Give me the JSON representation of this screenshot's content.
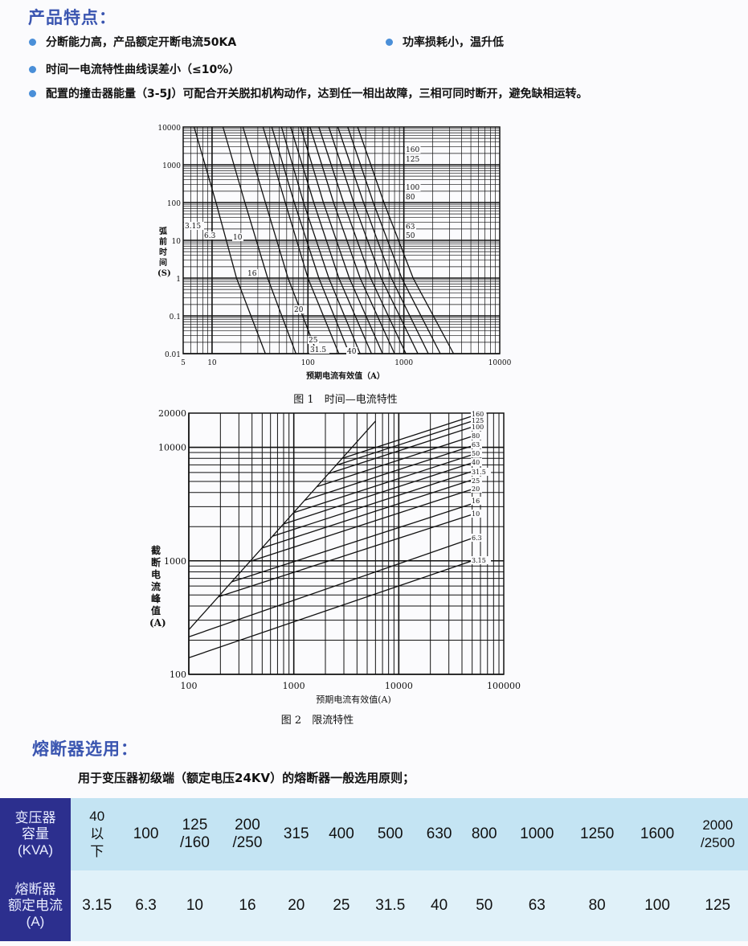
{
  "features": {
    "title": "产品特点：",
    "items": [
      "分断能力高，产品额定开断电流50KA",
      "功率损耗小，温升低",
      "时间一电流特性曲线误差小（≤10%）",
      "配置的撞击器能量（3-5J）可配合开关脱扣机构动作，达到任一相出故障，三相可同时断开，避免缺相运转。"
    ]
  },
  "chart_data": [
    {
      "type": "line",
      "caption": "图 1　时间—电流特性",
      "xlabel": "预期电流有效值（A）",
      "ylabel": "弧前时间(S)",
      "xscale": "log",
      "yscale": "log",
      "xlim": [
        5,
        10000
      ],
      "ylim": [
        0.01,
        10000
      ],
      "xticks": [
        "5",
        "10",
        "100",
        "1000",
        "10000"
      ],
      "xtick_values": [
        5,
        10,
        100,
        1000,
        10000
      ],
      "yticks": [
        "10000",
        "1000",
        "100",
        "10",
        "1",
        "0.1",
        "0.01"
      ],
      "ytick_values": [
        10000,
        1000,
        100,
        10,
        1,
        0.1,
        0.01
      ],
      "grid": true,
      "series": [
        {
          "name": "3.15",
          "points": [
            [
              6.5,
              10000
            ],
            [
              11,
              100
            ],
            [
              18,
              1
            ],
            [
              36,
              0.01
            ]
          ]
        },
        {
          "name": "6.3",
          "points": [
            [
              13,
              10000
            ],
            [
              22,
              100
            ],
            [
              38,
              1
            ],
            [
              75,
              0.01
            ]
          ]
        },
        {
          "name": "10",
          "points": [
            [
              21,
              10000
            ],
            [
              36,
              100
            ],
            [
              62,
              1
            ],
            [
              125,
              0.01
            ]
          ]
        },
        {
          "name": "16",
          "points": [
            [
              34,
              10000
            ],
            [
              58,
              100
            ],
            [
              100,
              1
            ],
            [
              210,
              0.01
            ]
          ]
        },
        {
          "name": "20",
          "points": [
            [
              42,
              10000
            ],
            [
              72,
              100
            ],
            [
              130,
              1
            ],
            [
              270,
              0.01
            ]
          ]
        },
        {
          "name": "25",
          "points": [
            [
              53,
              10000
            ],
            [
              90,
              100
            ],
            [
              165,
              1
            ],
            [
              350,
              0.01
            ]
          ]
        },
        {
          "name": "31.5",
          "points": [
            [
              66,
              10000
            ],
            [
              115,
              100
            ],
            [
              210,
              1
            ],
            [
              460,
              0.01
            ]
          ]
        },
        {
          "name": "40",
          "points": [
            [
              84,
              10000
            ],
            [
              145,
              100
            ],
            [
              270,
              1
            ],
            [
              600,
              0.01
            ]
          ]
        },
        {
          "name": "50",
          "points": [
            [
              105,
              10000
            ],
            [
              185,
              100
            ],
            [
              350,
              1
            ],
            [
              800,
              0.01
            ]
          ]
        },
        {
          "name": "63",
          "points": [
            [
              130,
              10000
            ],
            [
              235,
              100
            ],
            [
              450,
              1
            ],
            [
              1050,
              0.01
            ]
          ]
        },
        {
          "name": "80",
          "points": [
            [
              165,
              10000
            ],
            [
              300,
              100
            ],
            [
              580,
              1
            ],
            [
              1400,
              0.01
            ]
          ]
        },
        {
          "name": "100",
          "points": [
            [
              205,
              10000
            ],
            [
              380,
              100
            ],
            [
              740,
              1
            ],
            [
              1800,
              0.01
            ]
          ]
        },
        {
          "name": "125",
          "points": [
            [
              260,
              10000
            ],
            [
              480,
              100
            ],
            [
              950,
              1
            ],
            [
              2400,
              0.01
            ]
          ]
        },
        {
          "name": "160",
          "points": [
            [
              330,
              10000
            ],
            [
              620,
              100
            ],
            [
              1250,
              1
            ],
            [
              3300,
              0.01
            ]
          ]
        }
      ]
    },
    {
      "type": "line",
      "caption": "图 2　限流特性",
      "xlabel": "预期电流有效值(A)",
      "ylabel": "截断电流峰值(A)",
      "xscale": "log",
      "yscale": "log",
      "xlim": [
        100,
        100000
      ],
      "ylim": [
        100,
        20000
      ],
      "xticks": [
        "100",
        "1000",
        "10000",
        "100000"
      ],
      "xtick_values": [
        100,
        1000,
        10000,
        100000
      ],
      "yticks": [
        "20000",
        "10000",
        "1000",
        "100"
      ],
      "ytick_values": [
        20000,
        10000,
        1000,
        100
      ],
      "grid": true,
      "envelope": [
        [
          100,
          247
        ],
        [
          6000,
          17000
        ]
      ],
      "series": [
        {
          "name": "3.15",
          "points": [
            [
              100,
              140
            ],
            [
              50000,
              1000
            ]
          ]
        },
        {
          "name": "6.3",
          "points": [
            [
              100,
              214
            ],
            [
              50000,
              1580
            ]
          ]
        },
        {
          "name": "10",
          "points": [
            [
              190,
              481
            ],
            [
              50000,
              2560
            ]
          ]
        },
        {
          "name": "16",
          "points": [
            [
              255,
              652
            ],
            [
              50000,
              3180
            ]
          ]
        },
        {
          "name": "20",
          "points": [
            [
              382,
              988
            ],
            [
              50000,
              4270
            ]
          ]
        },
        {
          "name": "25",
          "points": [
            [
              495,
              1294
            ],
            [
              50000,
              5170
            ]
          ]
        },
        {
          "name": "31.5",
          "points": [
            [
              625,
              1644
            ],
            [
              50000,
              6130
            ]
          ]
        },
        {
          "name": "40",
          "points": [
            [
              793,
              2104
            ],
            [
              50000,
              7300
            ]
          ]
        },
        {
          "name": "50",
          "points": [
            [
              991,
              2650
            ],
            [
              50000,
              8600
            ]
          ]
        },
        {
          "name": "63",
          "points": [
            [
              1270,
              3420
            ],
            [
              50000,
              10300
            ]
          ]
        },
        {
          "name": "80",
          "points": [
            [
              1652,
              4490
            ],
            [
              50000,
              12500
            ]
          ]
        },
        {
          "name": "100",
          "points": [
            [
              2138,
              5860
            ],
            [
              50000,
              15100
            ]
          ]
        },
        {
          "name": "125",
          "points": [
            [
              2506,
              6920
            ],
            [
              50000,
              17000
            ]
          ]
        },
        {
          "name": "160",
          "points": [
            [
              2877,
              7980
            ],
            [
              50000,
              18800
            ]
          ]
        }
      ]
    }
  ],
  "selection": {
    "title": "熔断器选用：",
    "subtitle": "用于变压器初级端（额定电压24KV）的熔断器一般选用原则；",
    "row_headers": [
      [
        "变压器",
        "容量",
        "(KVA)"
      ],
      [
        "熔断器",
        "额定电流",
        "(A)"
      ]
    ],
    "capacity": [
      [
        "40",
        "以",
        "下"
      ],
      [
        "100"
      ],
      [
        "125",
        "/160"
      ],
      [
        "200",
        "/250"
      ],
      [
        "315"
      ],
      [
        "400"
      ],
      [
        "500"
      ],
      [
        "630"
      ],
      [
        "800"
      ],
      [
        "1000"
      ],
      [
        "1250"
      ],
      [
        "1600"
      ],
      [
        "2000",
        "/2500"
      ]
    ],
    "fuse_current": [
      "3.15",
      "6.3",
      "10",
      "16",
      "20",
      "25",
      "31.5",
      "40",
      "50",
      "63",
      "80",
      "100",
      "125"
    ]
  },
  "colors": {
    "title": "#3a55b0",
    "bullet": "#4a8fd8",
    "header_col": "#2c2f8e",
    "row1": "#c4e4f3",
    "row2": "#e0f1f9"
  }
}
